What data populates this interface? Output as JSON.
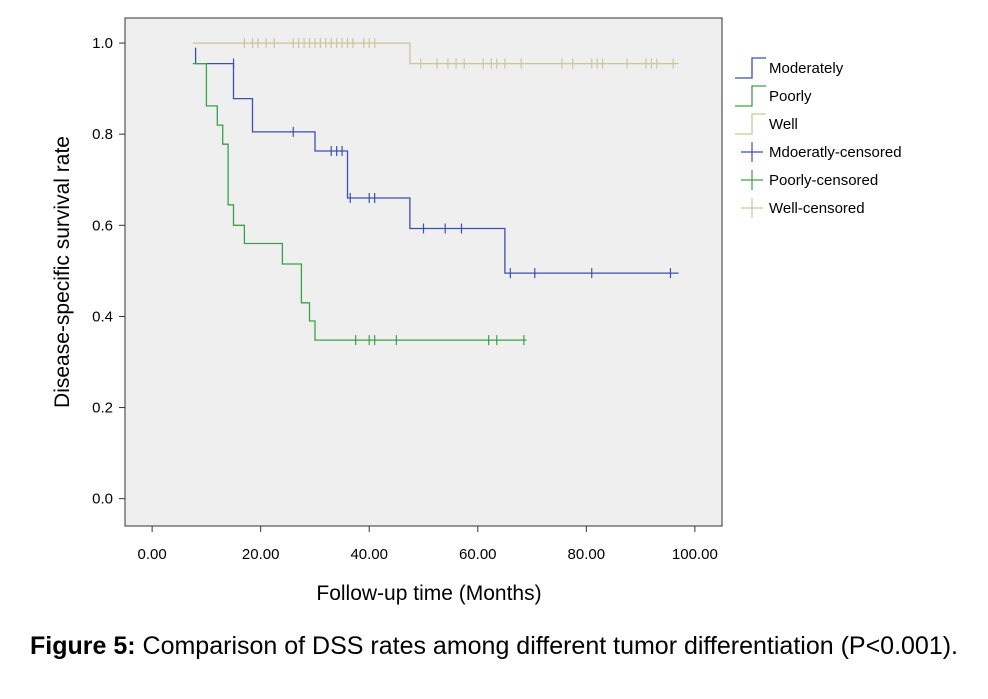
{
  "chart_data": {
    "type": "line",
    "subtype": "kaplan-meier-step",
    "xlabel": "Follow-up time (Months)",
    "ylabel": "Disease-specific survival rate",
    "xlim": [
      -5,
      105
    ],
    "ylim": [
      -0.06,
      1.055
    ],
    "x_ticks": [
      "0.00",
      "20.00",
      "40.00",
      "60.00",
      "80.00",
      "100.00"
    ],
    "y_ticks": [
      "0.0",
      "0.2",
      "0.4",
      "0.6",
      "0.8",
      "1.0"
    ],
    "grid": false,
    "legend_position": "right",
    "plot_background": "#efefef",
    "series": [
      {
        "name": "Moderately",
        "color": "#3b4fb0",
        "steps": [
          [
            8,
            0.99
          ],
          [
            8,
            0.955
          ],
          [
            15,
            0.955
          ],
          [
            15,
            0.878
          ],
          [
            18.5,
            0.878
          ],
          [
            18.5,
            0.805
          ],
          [
            30,
            0.805
          ],
          [
            30,
            0.763
          ],
          [
            36,
            0.763
          ],
          [
            36,
            0.66
          ],
          [
            47.5,
            0.66
          ],
          [
            47.5,
            0.593
          ],
          [
            65,
            0.593
          ],
          [
            65,
            0.495
          ],
          [
            97,
            0.495
          ]
        ],
        "censor_name": "Mdoeratly-censored",
        "censored": [
          [
            15,
            0.955
          ],
          [
            26,
            0.805
          ],
          [
            33,
            0.763
          ],
          [
            34,
            0.763
          ],
          [
            35,
            0.763
          ],
          [
            36.5,
            0.66
          ],
          [
            40,
            0.66
          ],
          [
            41,
            0.66
          ],
          [
            50,
            0.593
          ],
          [
            54,
            0.593
          ],
          [
            57,
            0.593
          ],
          [
            66,
            0.495
          ],
          [
            70.5,
            0.495
          ],
          [
            81,
            0.495
          ],
          [
            95.5,
            0.495
          ]
        ]
      },
      {
        "name": "Poorly",
        "color": "#3aa04a",
        "steps": [
          [
            7.5,
            0.955
          ],
          [
            10,
            0.955
          ],
          [
            10,
            0.862
          ],
          [
            12,
            0.862
          ],
          [
            12,
            0.82
          ],
          [
            13,
            0.82
          ],
          [
            13,
            0.778
          ],
          [
            14,
            0.778
          ],
          [
            14,
            0.645
          ],
          [
            15,
            0.645
          ],
          [
            15,
            0.6
          ],
          [
            17,
            0.6
          ],
          [
            17,
            0.56
          ],
          [
            24,
            0.56
          ],
          [
            24,
            0.515
          ],
          [
            27.5,
            0.515
          ],
          [
            27.5,
            0.43
          ],
          [
            29,
            0.43
          ],
          [
            29,
            0.39
          ],
          [
            30,
            0.39
          ],
          [
            30,
            0.348
          ],
          [
            69,
            0.348
          ]
        ],
        "censor_name": "Poorly-censored",
        "censored": [
          [
            37.5,
            0.348
          ],
          [
            40,
            0.348
          ],
          [
            41,
            0.348
          ],
          [
            45,
            0.348
          ],
          [
            62,
            0.348
          ],
          [
            63.5,
            0.348
          ],
          [
            68.5,
            0.348
          ]
        ]
      },
      {
        "name": "Well",
        "color": "#ccc59a",
        "steps": [
          [
            7.5,
            1.0
          ],
          [
            47.5,
            1.0
          ],
          [
            47.5,
            0.955
          ],
          [
            97,
            0.955
          ]
        ],
        "censor_name": "Well-censored",
        "censored": [
          [
            17,
            1.0
          ],
          [
            18.5,
            1.0
          ],
          [
            19.5,
            1.0
          ],
          [
            21,
            1.0
          ],
          [
            22.5,
            1.0
          ],
          [
            26,
            1.0
          ],
          [
            27,
            1.0
          ],
          [
            28,
            1.0
          ],
          [
            29,
            1.0
          ],
          [
            30,
            1.0
          ],
          [
            31,
            1.0
          ],
          [
            32,
            1.0
          ],
          [
            33,
            1.0
          ],
          [
            34,
            1.0
          ],
          [
            35,
            1.0
          ],
          [
            36,
            1.0
          ],
          [
            37,
            1.0
          ],
          [
            39,
            1.0
          ],
          [
            40,
            1.0
          ],
          [
            41,
            1.0
          ],
          [
            49.5,
            0.955
          ],
          [
            52.5,
            0.955
          ],
          [
            54.5,
            0.955
          ],
          [
            56,
            0.955
          ],
          [
            57.5,
            0.955
          ],
          [
            61,
            0.955
          ],
          [
            62.5,
            0.955
          ],
          [
            63.5,
            0.955
          ],
          [
            65,
            0.955
          ],
          [
            68,
            0.955
          ],
          [
            75.5,
            0.955
          ],
          [
            77.5,
            0.955
          ],
          [
            81,
            0.955
          ],
          [
            82,
            0.955
          ],
          [
            83,
            0.955
          ],
          [
            87.5,
            0.955
          ],
          [
            91,
            0.955
          ],
          [
            92,
            0.955
          ],
          [
            93,
            0.955
          ],
          [
            96,
            0.955
          ]
        ]
      }
    ],
    "legend_entries": [
      {
        "label": "Moderately",
        "kind": "step",
        "series": 0
      },
      {
        "label": "Poorly",
        "kind": "step",
        "series": 1
      },
      {
        "label": "Well",
        "kind": "step",
        "series": 2
      },
      {
        "label": "Mdoeratly-censored",
        "kind": "censor",
        "series": 0
      },
      {
        "label": "Poorly-censored",
        "kind": "censor",
        "series": 1
      },
      {
        "label": "Well-censored",
        "kind": "censor",
        "series": 2
      }
    ]
  },
  "caption": {
    "label": "Figure 5:",
    "text": " Comparison of DSS rates among different tumor differentiation (P<0.001)."
  }
}
